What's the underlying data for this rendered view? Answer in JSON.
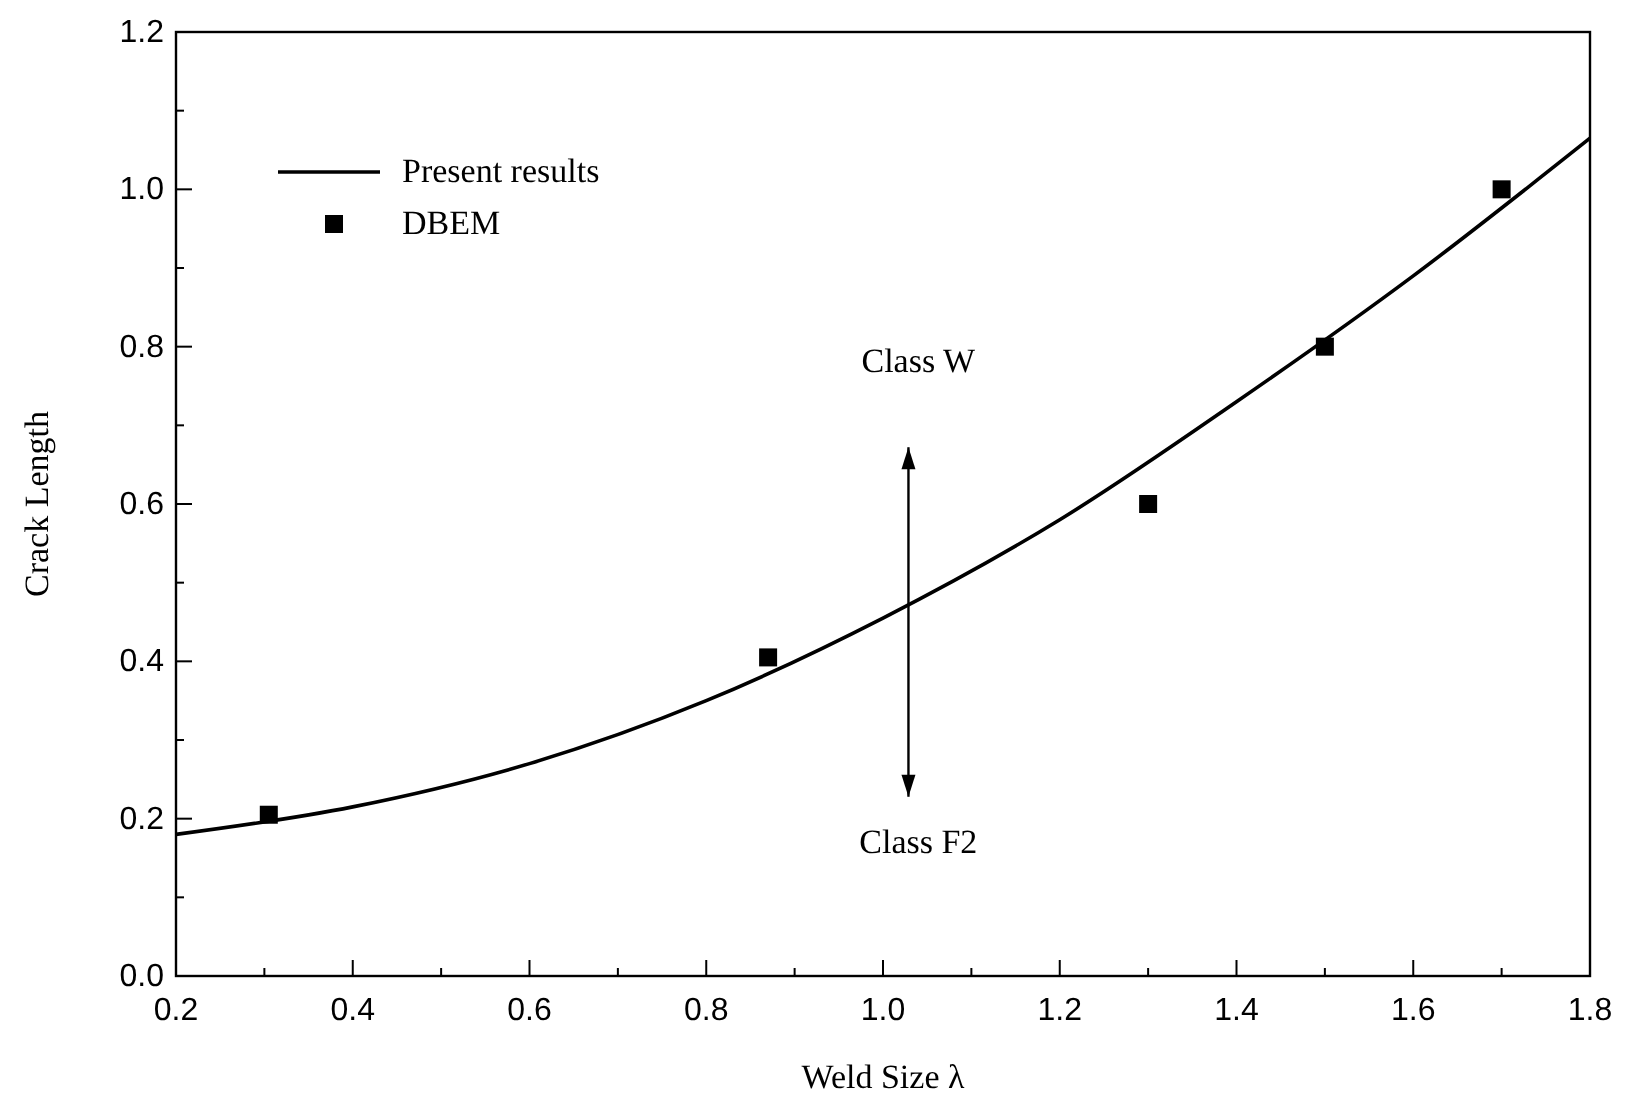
{
  "chart_data": {
    "type": "line",
    "xlabel": "Weld Size λ",
    "ylabel": "Crack Length",
    "xlim": [
      0.2,
      1.8
    ],
    "ylim": [
      0,
      1.2
    ],
    "xticks": [
      0.2,
      {
        "value": 0.3,
        "label": null
      },
      0.4,
      {
        "value": 0.5,
        "label": null
      },
      0.6,
      {
        "value": 0.7,
        "label": null
      },
      0.8,
      {
        "value": 0.9,
        "label": null
      },
      "1.0",
      {
        "value": 1.1,
        "label": null
      },
      1.2,
      {
        "value": 1.3,
        "label": null
      },
      1.4,
      {
        "value": 1.5,
        "label": null
      },
      1.6,
      {
        "value": 1.7,
        "label": null
      },
      1.8
    ],
    "yticks": [
      "0.0",
      {
        "value": 0.1,
        "label": null
      },
      0.2,
      {
        "value": 0.3,
        "label": null
      },
      0.4,
      {
        "value": 0.5,
        "label": null
      },
      0.6,
      {
        "value": 0.7,
        "label": null
      },
      0.8,
      {
        "value": 0.9,
        "label": null
      },
      "1.0",
      {
        "value": 1.1,
        "label": null
      },
      1.2
    ],
    "legend": "top left",
    "grid": false,
    "series": [
      {
        "name": "Present results",
        "color": "#000000",
        "marker": "none",
        "line_style": "solid",
        "x": [
          0.2,
          0.4,
          0.6,
          0.8,
          1.0,
          1.2,
          1.4,
          1.6,
          1.8
        ],
        "values": [
          0.18,
          0.215,
          0.27,
          0.35,
          0.455,
          0.58,
          0.73,
          0.89,
          1.065
        ]
      },
      {
        "name": "DBEM",
        "type": "scatter",
        "color": "#000000",
        "marker": "square",
        "x": [
          0.305,
          0.87,
          1.3,
          1.5,
          1.7
        ],
        "values": [
          0.205,
          0.405,
          0.6,
          0.8,
          1.0
        ]
      }
    ],
    "annotations": [
      "Class W",
      "Class F2"
    ]
  }
}
